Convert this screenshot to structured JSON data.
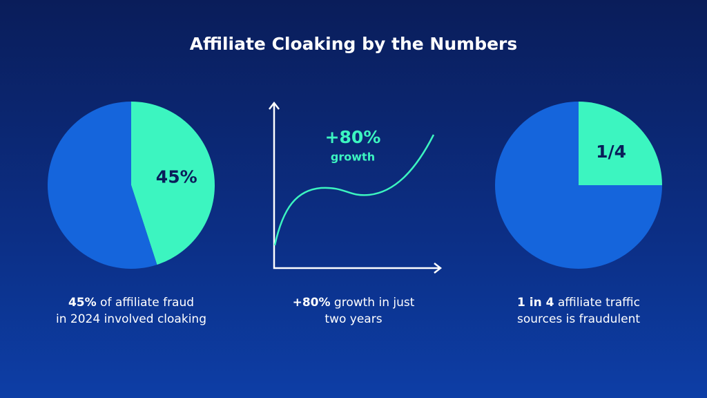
{
  "title": "Affiliate Cloaking by the Numbers",
  "chart_data": [
    {
      "type": "pie",
      "values": [
        45,
        55
      ],
      "value_labels": [
        "45%",
        null
      ],
      "colors": [
        "#3cf5c0",
        "#1565dc"
      ],
      "caption_bold": "45%",
      "caption_lines": [
        "of affiliate fraud",
        "in 2024 involved cloaking"
      ]
    },
    {
      "type": "pie",
      "values": [
        25,
        75
      ],
      "value_labels": [
        "1/4",
        null
      ],
      "colors": [
        "#3cf5c0",
        "#1565dc"
      ],
      "caption_bold": "1 in 4",
      "caption_lines": [
        "affiliate traffic",
        "sources is fraudulent"
      ]
    }
  ],
  "growth": {
    "label": "+80%",
    "sublabel": "growth",
    "caption_bold": "+80%",
    "caption_lines": [
      "growth in just",
      "two years"
    ]
  }
}
